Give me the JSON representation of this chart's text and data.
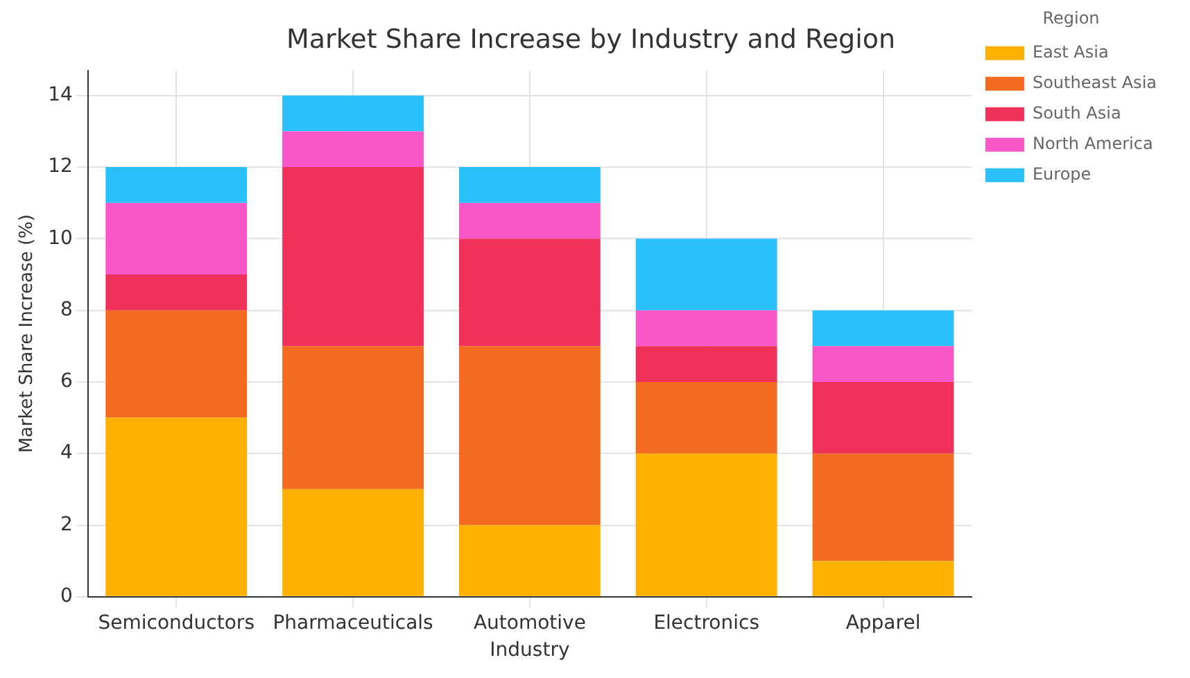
{
  "chart_data": {
    "type": "bar",
    "title": "Market Share Increase by Industry and Region",
    "xlabel": "Industry",
    "ylabel": "Market Share Increase (%)",
    "legend_title": "Region",
    "categories": [
      "Semiconductors",
      "Pharmaceuticals",
      "Automotive",
      "Electronics",
      "Apparel"
    ],
    "series": [
      {
        "name": "East Asia",
        "color": "#ffb000",
        "values": [
          5,
          3,
          2,
          4,
          1
        ]
      },
      {
        "name": "Southeast Asia",
        "color": "#f26b21",
        "values": [
          3,
          4,
          5,
          2,
          3
        ]
      },
      {
        "name": "South Asia",
        "color": "#f0325a",
        "values": [
          1,
          5,
          3,
          1,
          2
        ]
      },
      {
        "name": "North America",
        "color": "#f857c7",
        "values": [
          2,
          1,
          1,
          1,
          1
        ]
      },
      {
        "name": "Europe",
        "color": "#29c0fb",
        "values": [
          1,
          1,
          1,
          2,
          1
        ]
      }
    ],
    "stacked": true,
    "ylim": [
      0,
      14.7
    ],
    "yticks": [
      0,
      2,
      4,
      6,
      8,
      10,
      12,
      14
    ],
    "grid": true,
    "legend": "top right"
  }
}
